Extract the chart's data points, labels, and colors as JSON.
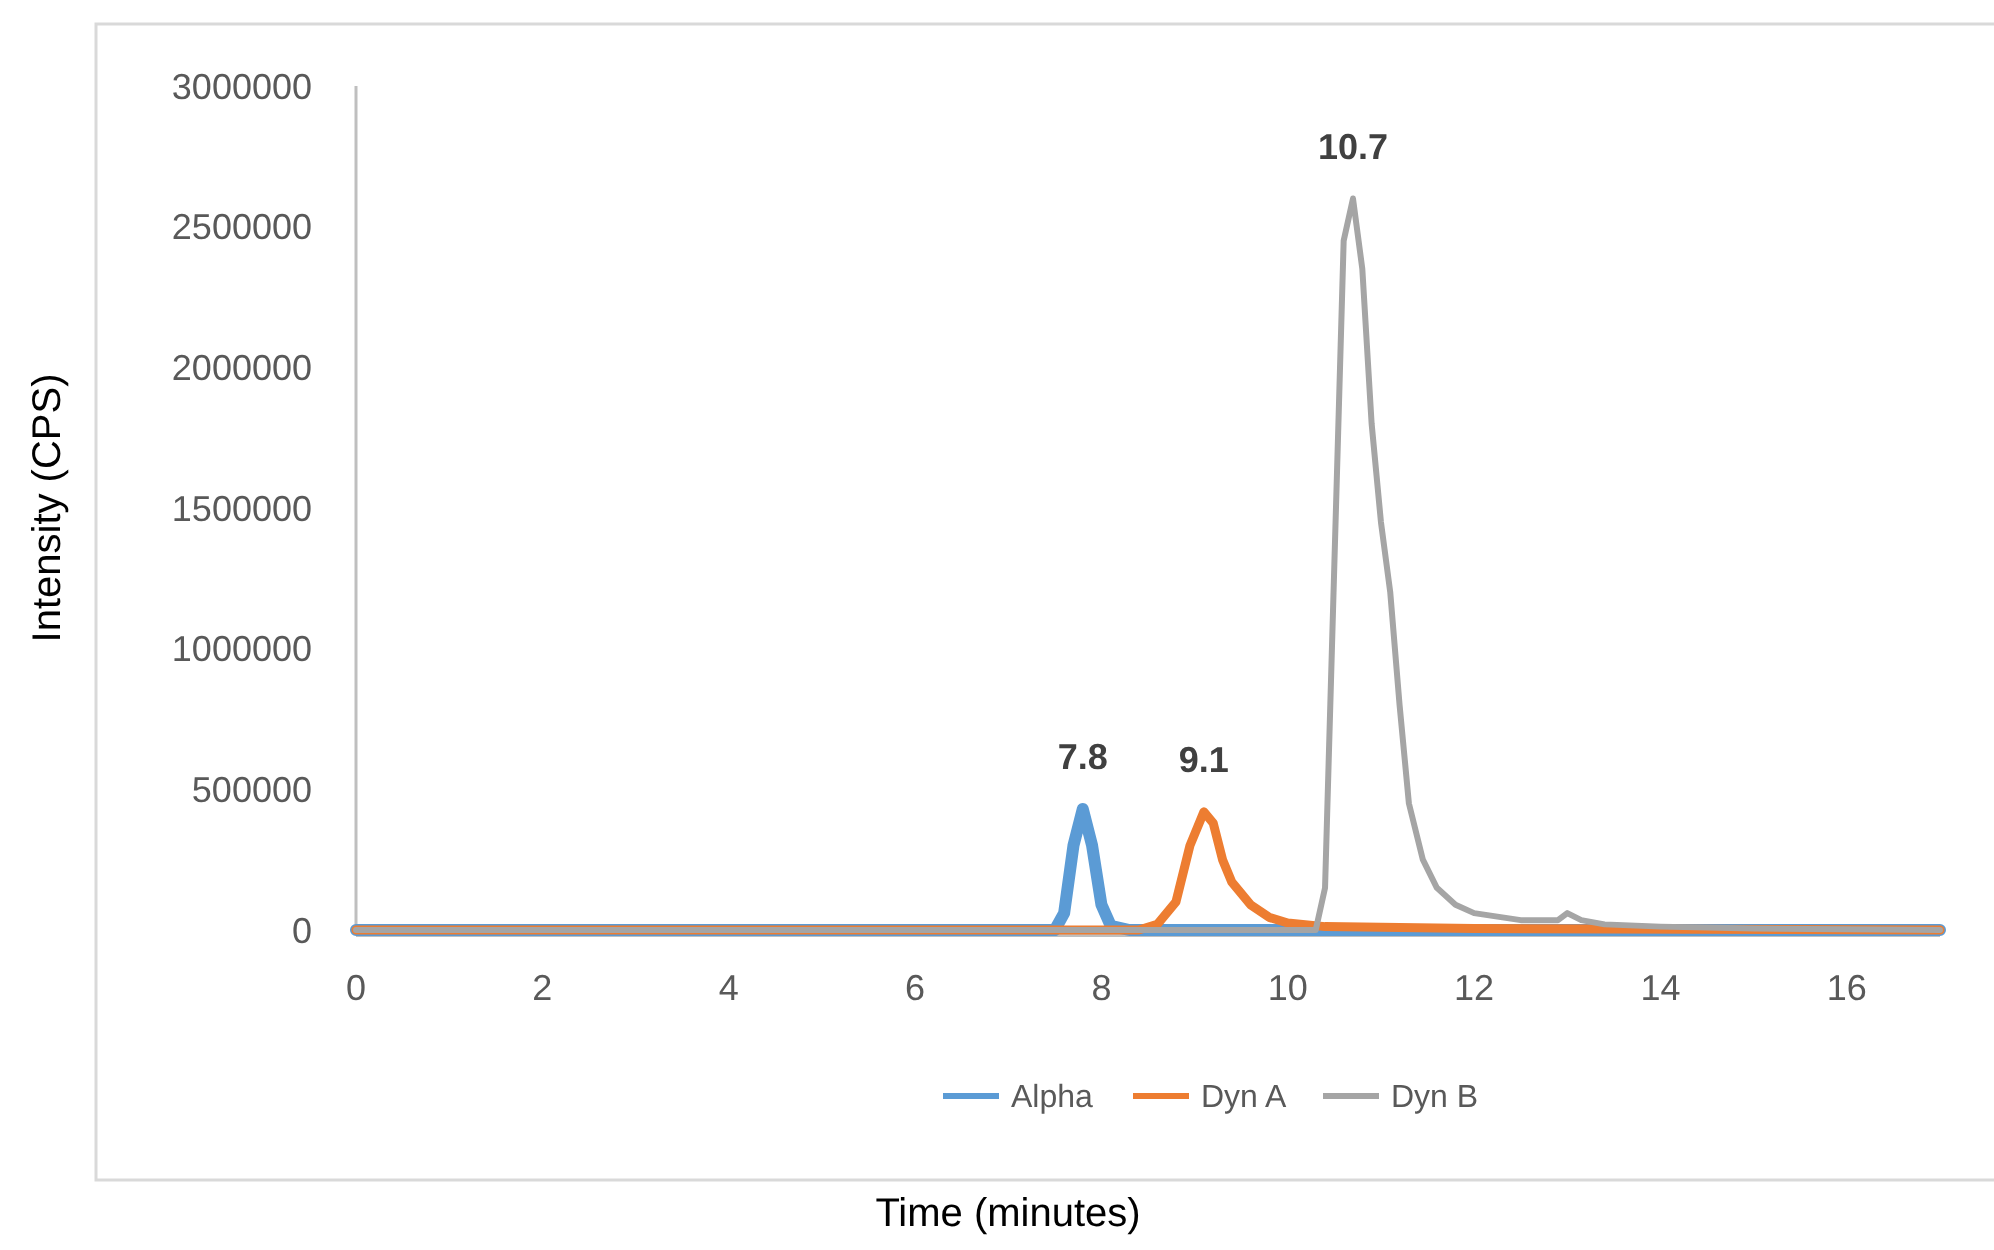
{
  "chart_data": {
    "type": "line",
    "xlabel": "Time (minutes)",
    "ylabel": "Intensity (CPS)",
    "xlim": [
      0,
      17
    ],
    "xticks": [
      0,
      2,
      4,
      6,
      8,
      10,
      12,
      14,
      16
    ],
    "ylim": [
      0,
      3000000
    ],
    "yticks": [
      0,
      500000,
      1000000,
      1500000,
      2000000,
      2500000,
      3000000
    ],
    "grid": false,
    "legend": "bottom",
    "marker": "none",
    "line_style": "solid",
    "annotations": [
      {
        "text": "7.8",
        "x": 7.8,
        "y": 430000
      },
      {
        "text": "9.1",
        "x": 9.1,
        "y": 420000
      },
      {
        "text": "10.7",
        "x": 10.7,
        "y": 2600000
      }
    ],
    "series": [
      {
        "name": "Alpha",
        "color": "#5b9bd5",
        "x": [
          0,
          7.5,
          7.6,
          7.7,
          7.8,
          7.9,
          8.0,
          8.1,
          8.3,
          10.5,
          17
        ],
        "values": [
          0,
          0,
          60000,
          300000,
          430000,
          300000,
          90000,
          15000,
          0,
          0,
          0
        ]
      },
      {
        "name": "Dyn A",
        "color": "#ed7d31",
        "x": [
          0,
          8.4,
          8.6,
          8.8,
          8.95,
          9.1,
          9.2,
          9.3,
          9.4,
          9.6,
          9.8,
          10.0,
          10.4,
          12,
          17
        ],
        "values": [
          0,
          0,
          20000,
          100000,
          300000,
          420000,
          380000,
          250000,
          170000,
          90000,
          45000,
          25000,
          12000,
          5000,
          0
        ]
      },
      {
        "name": "Dyn B",
        "color": "#a5a5a5",
        "x": [
          0,
          10.3,
          10.4,
          10.5,
          10.6,
          10.7,
          10.8,
          10.9,
          11.0,
          11.1,
          11.2,
          11.3,
          11.45,
          11.6,
          11.8,
          12.0,
          12.5,
          12.9,
          13.0,
          13.15,
          13.4,
          14,
          15,
          17
        ],
        "values": [
          0,
          0,
          150000,
          1300000,
          2450000,
          2600000,
          2350000,
          1800000,
          1450000,
          1200000,
          800000,
          450000,
          250000,
          150000,
          90000,
          60000,
          35000,
          35000,
          60000,
          35000,
          20000,
          12000,
          5000,
          0
        ]
      }
    ]
  }
}
